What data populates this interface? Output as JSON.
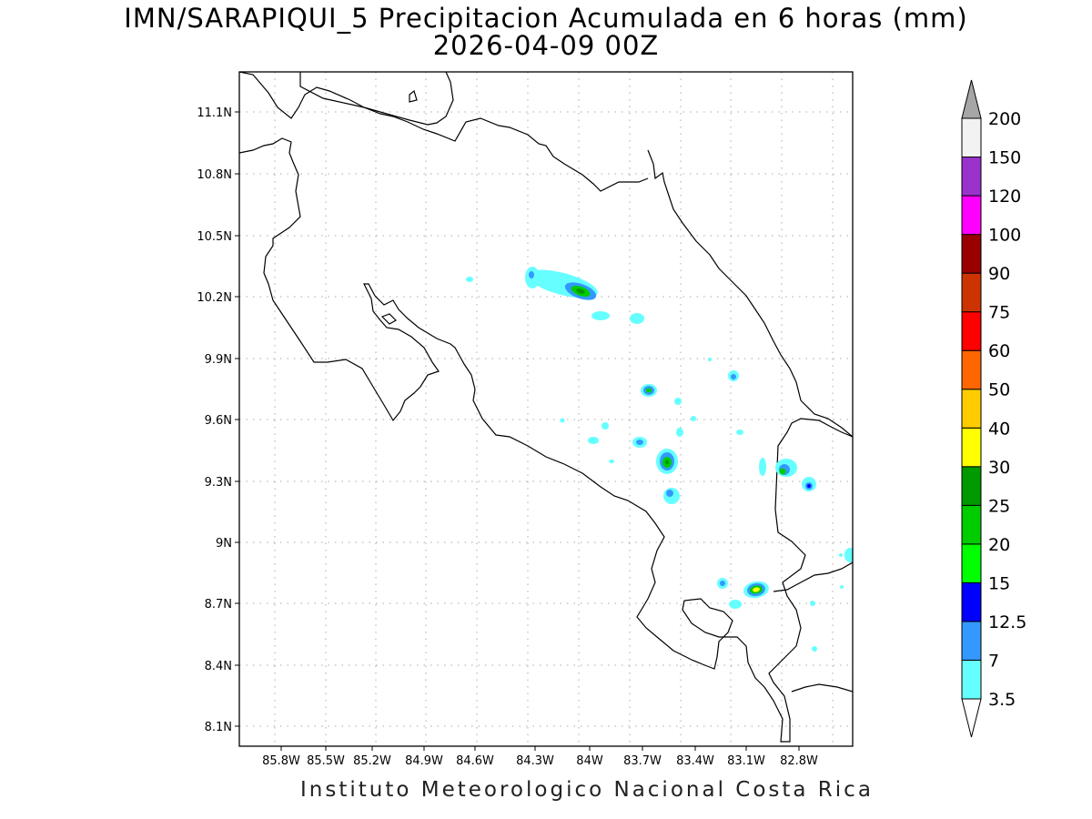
{
  "title_line1": "IMN/SARAPIQUI_5 Precipitacion Acumulada en 6 horas (mm)",
  "title_line2": "2026-04-09 00Z",
  "footer": "Instituto Meteorologico Nacional Costa Rica",
  "map": {
    "lon_ticks": [
      "85.8W",
      "85.5W",
      "85.2W",
      "84.9W",
      "84.6W",
      "84.3W",
      "84W",
      "83.7W",
      "83.4W",
      "83.1W",
      "82.8W"
    ],
    "lat_ticks": [
      "11.1N",
      "10.8N",
      "10.5N",
      "10.2N",
      "9.9N",
      "9.6N",
      "9.3N",
      "9N",
      "8.7N",
      "8.4N",
      "8.1N"
    ],
    "grid": true
  },
  "colorbar": {
    "levels": [
      "3.5",
      "7",
      "12.5",
      "15",
      "20",
      "25",
      "30",
      "40",
      "50",
      "60",
      "75",
      "90",
      "100",
      "120",
      "150",
      "200"
    ],
    "colors": [
      "#ffffff",
      "#66ffff",
      "#3399ff",
      "#0000ff",
      "#00ff00",
      "#00cc00",
      "#009900",
      "#ffff00",
      "#ffcc00",
      "#ff6600",
      "#ff0000",
      "#cc3300",
      "#990000",
      "#ff00ff",
      "#9933cc",
      "#f2f2f2",
      "#a6a6a6"
    ]
  },
  "precip_colors": {
    "cyan": "#66ffff",
    "light_blue": "#3399ff",
    "blue": "#0000ff",
    "green": "#00ff00",
    "mid_green": "#00cc00",
    "dark_green": "#009900",
    "yellow": "#ffff00"
  }
}
